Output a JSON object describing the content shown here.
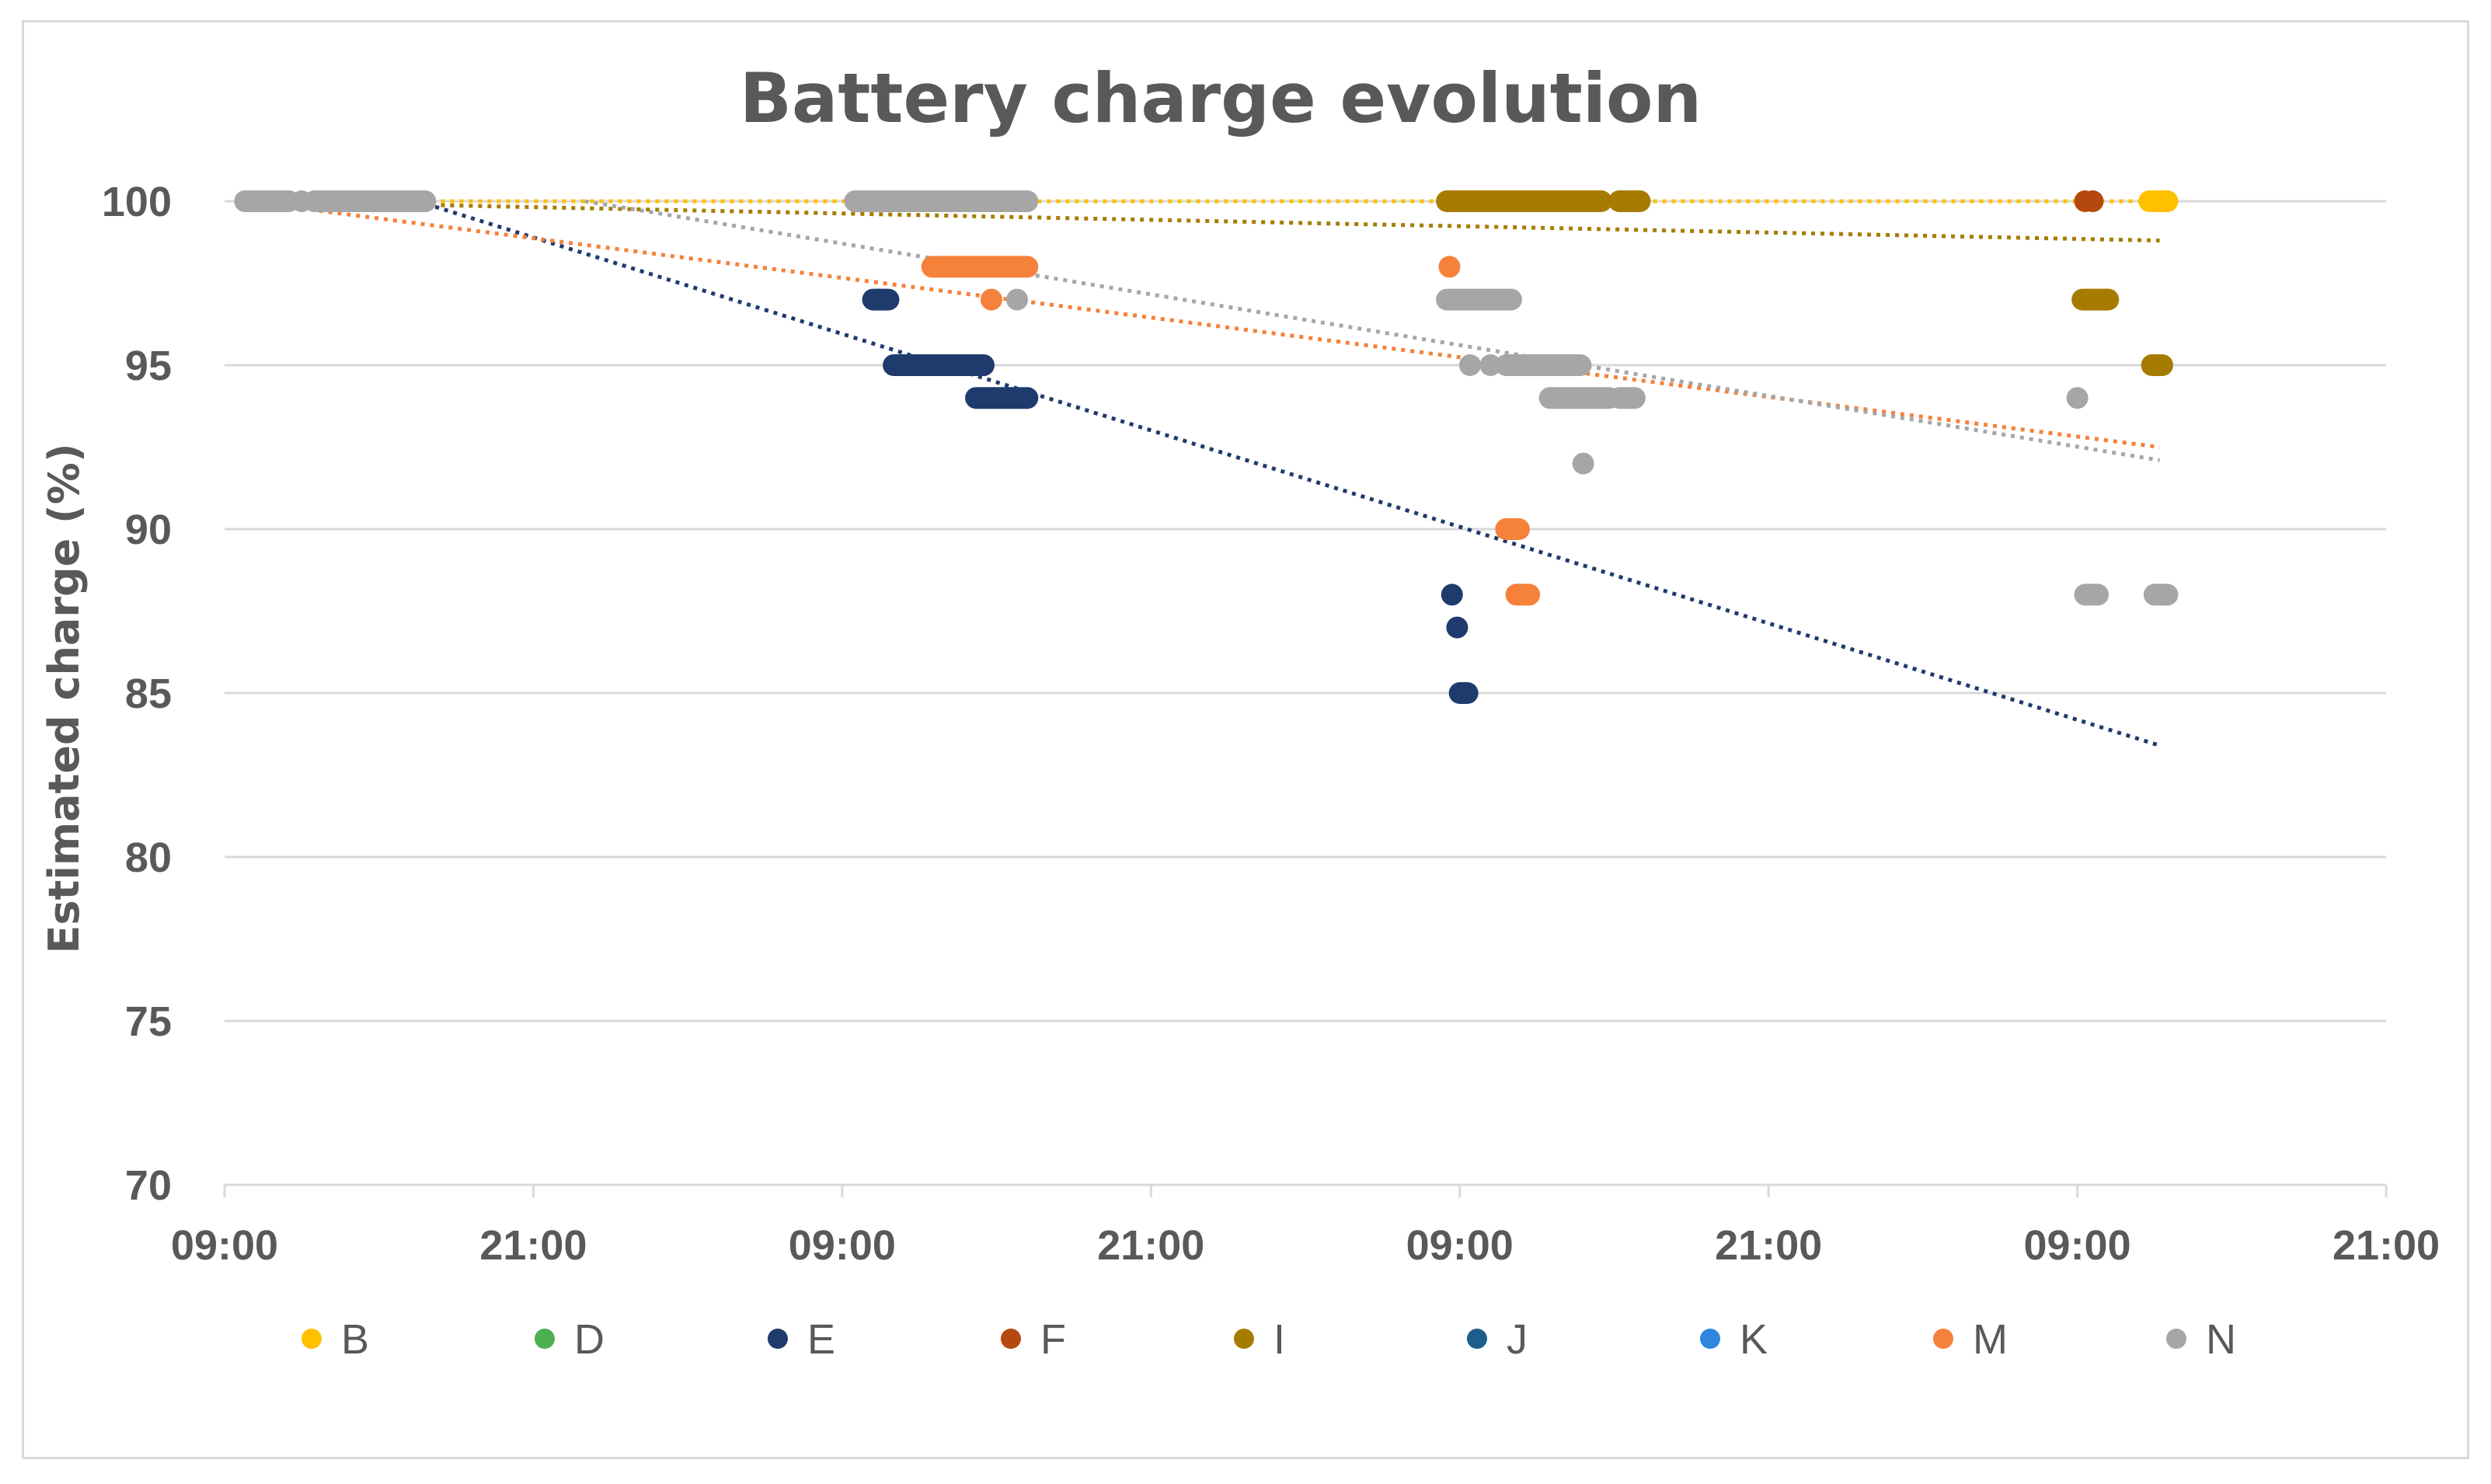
{
  "chart_data": {
    "type": "scatter",
    "title": "Battery charge evolution",
    "xlabel": "",
    "ylabel": "Estimated charge (%)",
    "ylim": [
      70,
      100
    ],
    "xlim_hours": [
      0,
      84
    ],
    "x_unit": "hours since day 1 09:00",
    "x_ticks": [
      {
        "value": 0,
        "label": "09:00"
      },
      {
        "value": 12,
        "label": "21:00"
      },
      {
        "value": 24,
        "label": "09:00"
      },
      {
        "value": 36,
        "label": "21:00"
      },
      {
        "value": 48,
        "label": "09:00"
      },
      {
        "value": 60,
        "label": "21:00"
      },
      {
        "value": 72,
        "label": "09:00"
      },
      {
        "value": 84,
        "label": "21:00"
      }
    ],
    "y_ticks": [
      70,
      75,
      80,
      85,
      90,
      95,
      100
    ],
    "gridlines": "horizontal",
    "legend_position": "bottom",
    "series": [
      {
        "name": "B",
        "color": "#FFC000",
        "points": [
          [
            0.8,
            100
          ],
          [
            1.5,
            100
          ],
          [
            2,
            100
          ],
          [
            3.5,
            100
          ],
          [
            5,
            100
          ],
          [
            6.5,
            100
          ],
          [
            7.5,
            100
          ],
          [
            72.6,
            100
          ],
          [
            74.8,
            100
          ],
          [
            75.2,
            100
          ]
        ],
        "segments": [
          [
            75.0,
            75.5,
            100
          ]
        ],
        "trend": [
          [
            0.8,
            100
          ],
          [
            75.2,
            100
          ]
        ]
      },
      {
        "name": "D",
        "color": "#4CAF50",
        "points": [],
        "segments": [],
        "trend": null
      },
      {
        "name": "E",
        "color": "#1F3B6E",
        "points": [
          [
            25.4,
            97
          ],
          [
            47.7,
            88
          ],
          [
            47.9,
            87
          ],
          [
            48.1,
            85
          ]
        ],
        "segments": [
          [
            25.2,
            25.8,
            97
          ],
          [
            26.0,
            29.5,
            95
          ],
          [
            29.2,
            31.2,
            94
          ],
          [
            48.0,
            48.3,
            85
          ]
        ],
        "trend": [
          [
            7.5,
            100
          ],
          [
            75.2,
            83.4
          ]
        ]
      },
      {
        "name": "F",
        "color": "#B5480F",
        "points": [
          [
            72.3,
            100
          ],
          [
            72.6,
            100
          ]
        ],
        "segments": [],
        "trend": null
      },
      {
        "name": "I",
        "color": "#A67C00",
        "points": [
          [
            30.8,
            100
          ],
          [
            75.0,
            95
          ],
          [
            75.3,
            95
          ]
        ],
        "segments": [
          [
            47.5,
            53.5,
            100
          ],
          [
            54.2,
            55.0,
            100
          ],
          [
            72.2,
            73.2,
            97
          ],
          [
            74.9,
            75.3,
            95
          ]
        ],
        "trend": [
          [
            0.8,
            100
          ],
          [
            75.2,
            98.8
          ]
        ]
      },
      {
        "name": "J",
        "color": "#1D5F8A",
        "points": [],
        "segments": [],
        "trend": null
      },
      {
        "name": "K",
        "color": "#2E86DE",
        "points": [],
        "segments": [],
        "trend": null
      },
      {
        "name": "M",
        "color": "#F5813A",
        "points": [
          [
            29.8,
            97
          ],
          [
            47.6,
            98
          ],
          [
            49.9,
            90
          ],
          [
            50.3,
            88
          ]
        ],
        "segments": [
          [
            27.5,
            31.2,
            98
          ],
          [
            49.8,
            50.3,
            90
          ],
          [
            50.2,
            50.7,
            88
          ]
        ],
        "trend": [
          [
            0.8,
            100
          ],
          [
            75.2,
            92.5
          ]
        ]
      },
      {
        "name": "N",
        "color": "#A6A6A6",
        "points": [
          [
            0.8,
            100
          ],
          [
            3.0,
            100
          ],
          [
            6.0,
            100
          ],
          [
            30.8,
            97
          ],
          [
            48.4,
            95
          ],
          [
            49.2,
            95
          ],
          [
            52.8,
            92
          ],
          [
            72.0,
            94
          ],
          [
            72.4,
            88
          ],
          [
            75.0,
            88
          ],
          [
            75.4,
            88
          ]
        ],
        "segments": [
          [
            0.8,
            2.5,
            100
          ],
          [
            3.5,
            7.8,
            100
          ],
          [
            24.5,
            31.2,
            100
          ],
          [
            47.5,
            50.0,
            97
          ],
          [
            49.8,
            52.7,
            95
          ],
          [
            51.5,
            53.8,
            94
          ],
          [
            54.2,
            54.8,
            94
          ],
          [
            72.3,
            72.8,
            88
          ],
          [
            75.0,
            75.5,
            88
          ]
        ],
        "trend": [
          [
            14,
            100
          ],
          [
            75.2,
            92.1
          ]
        ]
      }
    ]
  }
}
